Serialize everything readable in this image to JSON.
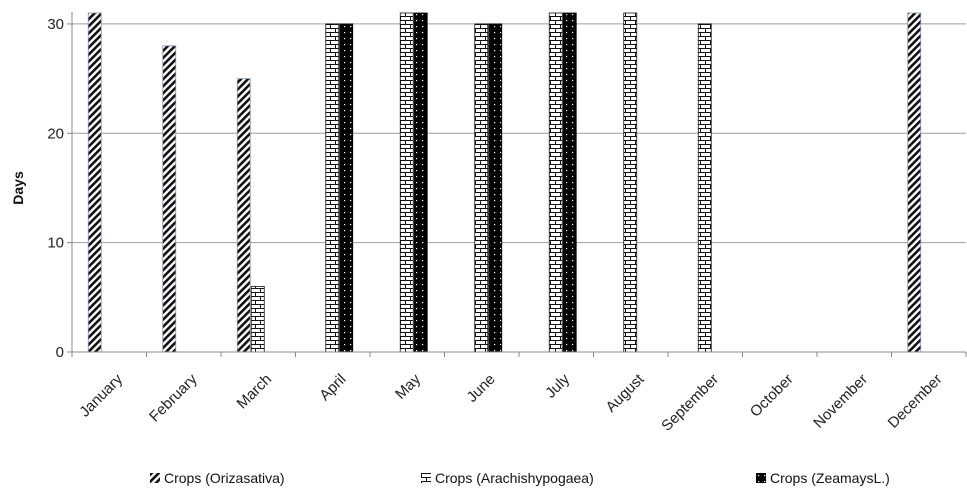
{
  "chart_data": {
    "type": "bar",
    "categories": [
      "January",
      "February",
      "March",
      "April",
      "May",
      "June",
      "July",
      "August",
      "September",
      "October",
      "November",
      "December"
    ],
    "series": [
      {
        "name": "Crops (Orizasativa)",
        "values": [
          31,
          28,
          25,
          0,
          0,
          0,
          0,
          0,
          0,
          0,
          0,
          31
        ]
      },
      {
        "name": "Crops (Arachishypogaea)",
        "values": [
          0,
          0,
          6,
          30,
          31,
          30,
          31,
          31,
          30,
          0,
          0,
          0
        ]
      },
      {
        "name": "Crops (ZeamaysL.)",
        "values": [
          0,
          0,
          0,
          30,
          31,
          30,
          31,
          0,
          0,
          0,
          0,
          0
        ]
      }
    ],
    "ylabel": "Days",
    "xlabel": "",
    "ylim": [
      0,
      31
    ],
    "yticks": [
      0,
      10,
      20,
      30
    ],
    "grid": true,
    "legend_position": "bottom",
    "colors": {
      "grid": "#9e9e9e",
      "axis": "#888888",
      "ink": "#111111"
    }
  }
}
